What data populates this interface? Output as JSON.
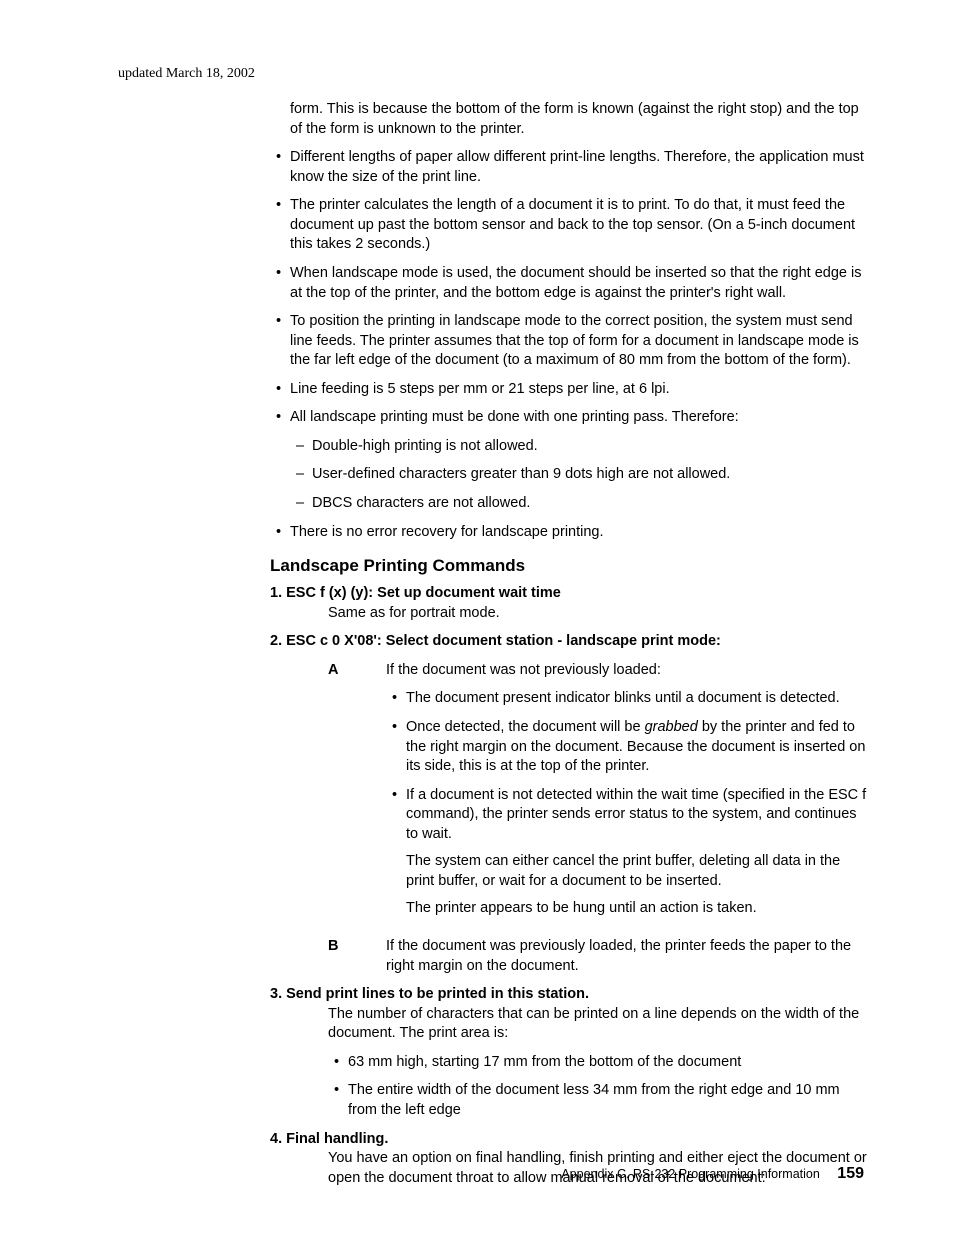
{
  "headerDate": "updated March 18, 2002",
  "introPara": "form. This is because the bottom of the form is known (against the right stop) and the top of the form is unknown to the printer.",
  "topBullets": [
    "Different lengths of paper allow different print-line lengths. Therefore, the application must know the size of the print line.",
    "The printer calculates the length of a document it is to print. To do that, it must feed the document up past the bottom sensor and back to the top sensor. (On a 5-inch document this takes 2 seconds.)",
    "When landscape mode is used, the document should be inserted so that the right edge is at the top of the printer, and the bottom edge is against the printer's right wall.",
    "To position the printing in landscape mode to the correct position, the system must send line feeds. The printer assumes that the top of form for a document in landscape mode is the far left edge of the document (to a maximum of 80 mm from the bottom of the form).",
    "Line feeding is 5 steps per mm or 21 steps per line, at 6 lpi."
  ],
  "bulletWithSubs": {
    "text": "All landscape printing must be done with one printing pass. Therefore:",
    "subs": [
      "Double-high printing is not allowed.",
      "User-defined characters greater than 9 dots high are not allowed.",
      "DBCS characters are not allowed."
    ]
  },
  "lastTopBullet": "There is no error recovery for landscape printing.",
  "sectionHeading": "Landscape Printing Commands",
  "item1": {
    "label": "1. ESC f (x) (y): Set up document wait time",
    "body": "Same as for portrait mode."
  },
  "item2": {
    "label": "2. ESC c 0 X'08': Select document station - landscape print mode:",
    "A": {
      "letter": "A",
      "intro": "If the document was not previously loaded:",
      "bullets": [
        "The document present indicator blinks until a document is detected."
      ],
      "bullet2_pre": "Once detected, the document will be ",
      "bullet2_italic": "grabbed",
      "bullet2_post": " by the printer and fed to the right margin on the document. Because the document is inserted on its side, this is at the top of the printer.",
      "bullet3": "If a document is not detected within the wait time (specified in the ESC f command), the printer sends error status to the system, and continues to wait.",
      "bullet3_p1": "The system can either cancel the print buffer, deleting all data in the print buffer, or wait for a document to be inserted.",
      "bullet3_p2": "The printer appears to be hung until an action is taken."
    },
    "B": {
      "letter": "B",
      "text": "If the document was previously loaded, the printer feeds the paper to the right margin on the document."
    }
  },
  "item3": {
    "label": "3. Send print lines to be printed in this station.",
    "body": "The number of characters that can be printed on a line depends on the width of the document. The print area is:",
    "bullets": [
      "63 mm high, starting 17 mm from the bottom of the document",
      "The entire width of the document less 34 mm from the right edge and 10 mm from the left edge"
    ]
  },
  "item4": {
    "label": "4. Final handling.",
    "body": "You have an option on final handling, finish printing and either eject the document or open the document throat to allow manual removal of the document:"
  },
  "footer": {
    "text": "Appendix C. RS-232 Programming Information",
    "page": "159"
  }
}
